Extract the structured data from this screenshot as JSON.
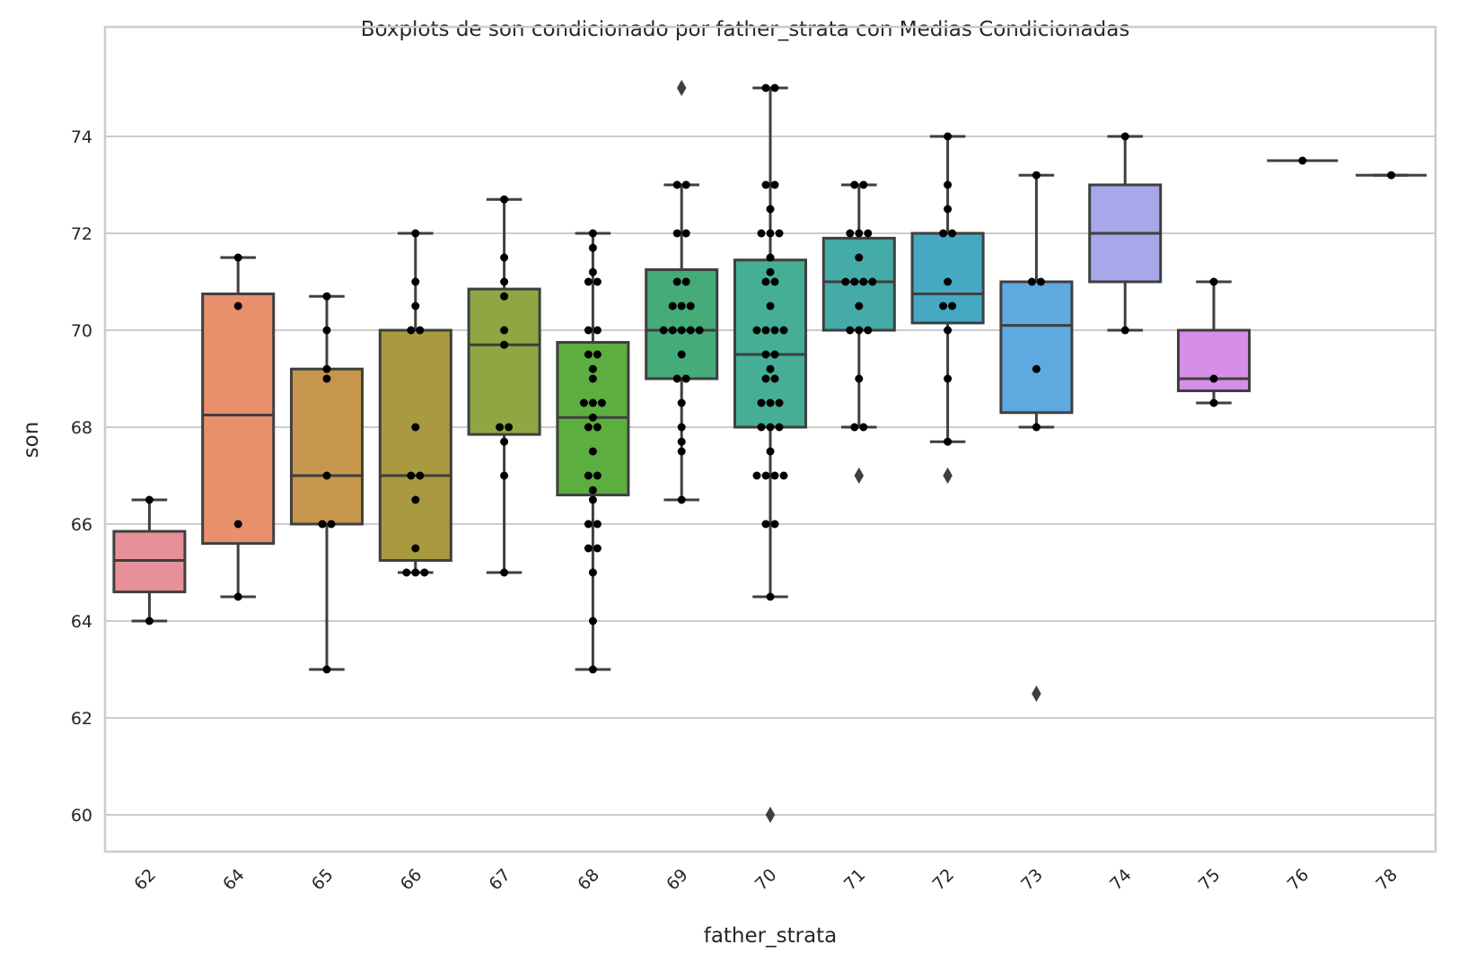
{
  "chart_data": {
    "type": "box",
    "title": "Boxplots de son condicionado por father_strata con Medias Condicionadas",
    "xlabel": "father_strata",
    "ylabel": "son",
    "ylim": [
      59.3,
      75.7
    ],
    "yticks": [
      60,
      62,
      64,
      66,
      68,
      70,
      72,
      74
    ],
    "grid": true,
    "categories": [
      "62",
      "64",
      "65",
      "66",
      "67",
      "68",
      "69",
      "70",
      "71",
      "72",
      "73",
      "74",
      "75",
      "76",
      "78"
    ],
    "colors": [
      "#e8909a",
      "#e88f6b",
      "#c6964c",
      "#a99a3f",
      "#8fa643",
      "#5dae40",
      "#44ab79",
      "#46ae96",
      "#45aba9",
      "#46a9c3",
      "#5ea9e0",
      "#a7a7ea",
      "#d58fe6",
      "#e98ed4",
      "#ea8fae"
    ],
    "boxes": [
      {
        "category": "62",
        "q1": 64.6,
        "median": 65.25,
        "q3": 65.85,
        "whisker_low": 64.0,
        "whisker_high": 66.5,
        "outliers": [],
        "points": [
          66.5,
          64.0
        ]
      },
      {
        "category": "64",
        "q1": 65.6,
        "median": 68.25,
        "q3": 70.75,
        "whisker_low": 64.5,
        "whisker_high": 71.5,
        "outliers": [],
        "points": [
          71.5,
          70.5,
          66.0,
          64.5
        ]
      },
      {
        "category": "65",
        "q1": 66.0,
        "median": 67.0,
        "q3": 69.2,
        "whisker_low": 63.0,
        "whisker_high": 70.7,
        "outliers": [],
        "points": [
          70.7,
          70.0,
          69.2,
          69.0,
          67.0,
          66.0,
          66.0,
          63.0
        ]
      },
      {
        "category": "66",
        "q1": 65.25,
        "median": 67.0,
        "q3": 70.0,
        "whisker_low": 65.0,
        "whisker_high": 72.0,
        "outliers": [],
        "points": [
          72.0,
          71.0,
          70.5,
          70.0,
          70.0,
          68.0,
          67.0,
          67.0,
          66.5,
          65.5,
          65.0,
          65.0,
          65.0
        ]
      },
      {
        "category": "67",
        "q1": 67.85,
        "median": 69.7,
        "q3": 70.85,
        "whisker_low": 65.0,
        "whisker_high": 72.7,
        "outliers": [],
        "points": [
          72.7,
          71.5,
          71.0,
          70.7,
          70.0,
          69.7,
          68.0,
          68.0,
          67.7,
          67.0,
          65.0
        ]
      },
      {
        "category": "68",
        "q1": 66.6,
        "median": 68.2,
        "q3": 69.75,
        "whisker_low": 63.0,
        "whisker_high": 72.0,
        "outliers": [],
        "points": [
          72.0,
          71.7,
          71.2,
          71.0,
          71.0,
          70.0,
          70.0,
          69.5,
          69.5,
          69.2,
          69.0,
          68.5,
          68.5,
          68.5,
          68.2,
          68.0,
          68.0,
          67.5,
          67.0,
          67.0,
          66.7,
          66.5,
          66.0,
          66.0,
          65.5,
          65.5,
          65.0,
          64.0,
          63.0
        ]
      },
      {
        "category": "69",
        "q1": 69.0,
        "median": 70.0,
        "q3": 71.25,
        "whisker_low": 66.5,
        "whisker_high": 73.0,
        "outliers": [
          75.0
        ],
        "points": [
          73.0,
          73.0,
          72.0,
          72.0,
          71.0,
          71.0,
          70.5,
          70.5,
          70.5,
          70.0,
          70.0,
          70.0,
          70.0,
          70.0,
          69.5,
          69.0,
          69.0,
          68.5,
          68.0,
          67.7,
          67.5,
          66.5
        ]
      },
      {
        "category": "70",
        "q1": 68.0,
        "median": 69.5,
        "q3": 71.45,
        "whisker_low": 64.5,
        "whisker_high": 75.0,
        "outliers": [
          60.0
        ],
        "points": [
          75.0,
          75.0,
          73.0,
          73.0,
          72.5,
          72.0,
          72.0,
          72.0,
          71.5,
          71.2,
          71.0,
          71.0,
          70.5,
          70.0,
          70.0,
          70.0,
          70.0,
          69.5,
          69.5,
          69.2,
          69.0,
          69.0,
          68.5,
          68.5,
          68.5,
          68.0,
          68.0,
          68.0,
          67.5,
          67.0,
          67.0,
          67.0,
          67.0,
          66.0,
          66.0,
          64.5
        ]
      },
      {
        "category": "71",
        "q1": 70.0,
        "median": 71.0,
        "q3": 71.9,
        "whisker_low": 68.0,
        "whisker_high": 73.0,
        "outliers": [
          67.0
        ],
        "points": [
          73.0,
          73.0,
          72.0,
          72.0,
          72.0,
          71.5,
          71.0,
          71.0,
          71.0,
          71.0,
          70.5,
          70.0,
          70.0,
          70.0,
          69.0,
          68.0,
          68.0
        ]
      },
      {
        "category": "72",
        "q1": 70.15,
        "median": 70.75,
        "q3": 72.0,
        "whisker_low": 67.7,
        "whisker_high": 74.0,
        "outliers": [
          67.0
        ],
        "points": [
          74.0,
          73.0,
          72.5,
          72.0,
          72.0,
          71.0,
          70.5,
          70.5,
          70.0,
          69.0,
          67.7
        ]
      },
      {
        "category": "73",
        "q1": 68.3,
        "median": 70.1,
        "q3": 71.0,
        "whisker_low": 68.0,
        "whisker_high": 73.2,
        "outliers": [
          62.5
        ],
        "points": [
          73.2,
          71.0,
          71.0,
          69.2,
          68.0
        ]
      },
      {
        "category": "74",
        "q1": 71.0,
        "median": 72.0,
        "q3": 73.0,
        "whisker_low": 70.0,
        "whisker_high": 74.0,
        "outliers": [],
        "points": [
          74.0,
          70.0
        ]
      },
      {
        "category": "75",
        "q1": 68.75,
        "median": 69.0,
        "q3": 70.0,
        "whisker_low": 68.5,
        "whisker_high": 71.0,
        "outliers": [],
        "points": [
          71.0,
          69.0,
          68.5
        ]
      },
      {
        "category": "76",
        "q1": 73.5,
        "median": 73.5,
        "q3": 73.5,
        "whisker_low": 73.5,
        "whisker_high": 73.5,
        "outliers": [],
        "points": [
          73.5
        ]
      },
      {
        "category": "78",
        "q1": 73.2,
        "median": 73.2,
        "q3": 73.2,
        "whisker_low": 73.2,
        "whisker_high": 73.2,
        "outliers": [],
        "points": [
          73.2
        ]
      }
    ]
  }
}
